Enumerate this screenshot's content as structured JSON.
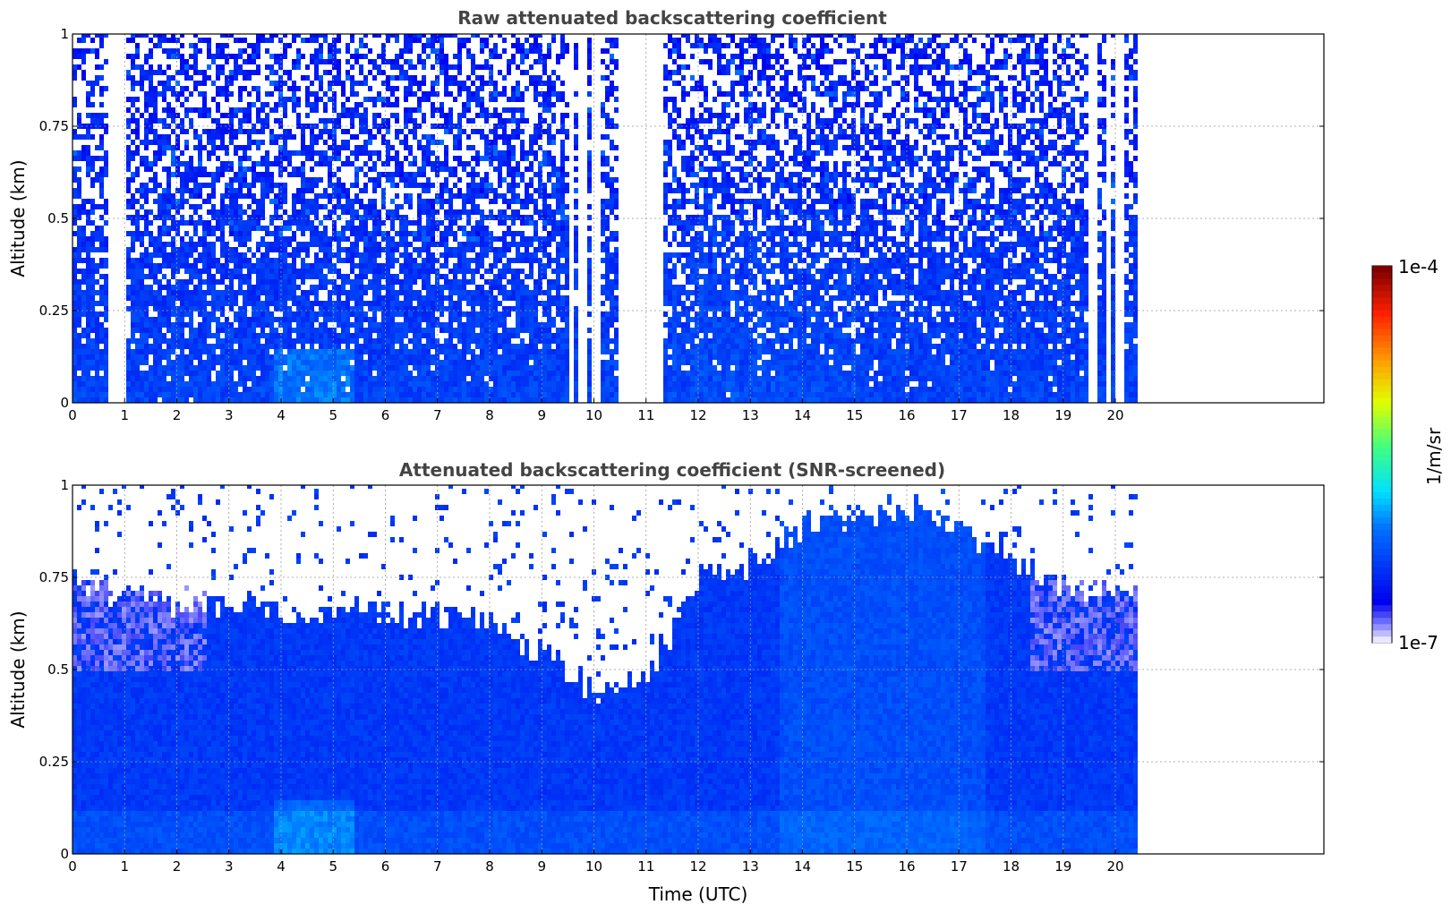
{
  "chart_data": [
    {
      "type": "heatmap",
      "title": "Raw attenuated backscattering coefficient",
      "xlabel": "",
      "ylabel": "Altitude (km)",
      "xlim": [
        0,
        24
      ],
      "ylim": [
        0,
        1
      ],
      "x_ticks": [
        "0",
        "1",
        "2",
        "3",
        "4",
        "5",
        "6",
        "7",
        "8",
        "9",
        "10",
        "11",
        "12",
        "13",
        "14",
        "15",
        "16",
        "17",
        "18",
        "19",
        "20"
      ],
      "y_ticks": [
        "0",
        "0.25",
        "0.5",
        "0.75",
        "1"
      ],
      "grid": true,
      "data_extent_hours": [
        0,
        20.4
      ],
      "gaps_hours": [
        [
          0.7,
          0.78
        ],
        [
          0.85,
          1.0
        ],
        [
          9.55,
          9.6
        ],
        [
          9.75,
          9.8
        ],
        [
          10.0,
          10.05
        ],
        [
          10.5,
          10.6
        ],
        [
          10.7,
          10.75
        ],
        [
          10.85,
          10.95
        ],
        [
          11.0,
          11.1
        ],
        [
          11.15,
          11.2
        ],
        [
          11.25,
          11.3
        ],
        [
          19.55,
          19.6
        ],
        [
          19.85,
          19.9
        ],
        [
          20.05,
          20.1
        ]
      ],
      "colorbar": {
        "min": "1e-7",
        "max": "1e-4",
        "label": "1/m/sr",
        "scale": "log",
        "colormap": "jet"
      }
    },
    {
      "type": "heatmap",
      "title": "Attenuated backscattering coefficient (SNR-screened)",
      "xlabel": "Time (UTC)",
      "ylabel": "Altitude (km)",
      "xlim": [
        0,
        24
      ],
      "ylim": [
        0,
        1
      ],
      "x_ticks": [
        "0",
        "1",
        "2",
        "3",
        "4",
        "5",
        "6",
        "7",
        "8",
        "9",
        "10",
        "11",
        "12",
        "13",
        "14",
        "15",
        "16",
        "17",
        "18",
        "19",
        "20"
      ],
      "y_ticks": [
        "0",
        "0.25",
        "0.5",
        "0.75",
        "1"
      ],
      "grid": true,
      "data_extent_hours": [
        0,
        20.4
      ],
      "screened_top_km": [
        [
          0,
          0.74
        ],
        [
          2,
          0.68
        ],
        [
          4,
          0.66
        ],
        [
          6,
          0.66
        ],
        [
          8,
          0.64
        ],
        [
          9,
          0.55
        ],
        [
          10,
          0.45
        ],
        [
          11,
          0.5
        ],
        [
          12,
          0.75
        ],
        [
          13,
          0.8
        ],
        [
          14,
          0.9
        ],
        [
          16,
          0.95
        ],
        [
          17,
          0.9
        ],
        [
          18,
          0.8
        ],
        [
          19,
          0.72
        ],
        [
          20.4,
          0.7
        ]
      ],
      "colorbar": {
        "min": "1e-7",
        "max": "1e-4",
        "label": "1/m/sr",
        "scale": "log",
        "colormap": "jet"
      }
    }
  ]
}
